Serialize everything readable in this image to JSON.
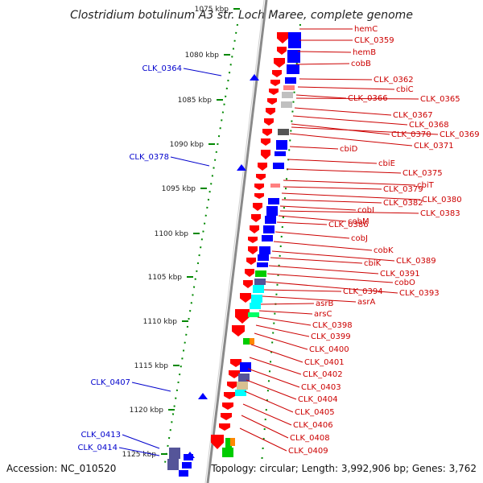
{
  "title": "Clostridium botulinum A3 str. Loch Maree, complete genome",
  "accession_text": "Accession: NC_010520",
  "summary_text": "Topology: circular; Length: 3,992,906 bp; Genes: 3,762",
  "colors": {
    "backbone": "#8a8a8a",
    "forward_genes": "#ff0000",
    "reverse_genes": "#0000ff",
    "tick_marks": "#008800",
    "label_red": "#cc0000",
    "label_blue": "#0000cc"
  },
  "ruler": {
    "unit": "kbp",
    "ticks": [
      "1075 kbp",
      "1080 kbp",
      "1085 kbp",
      "1090 kbp",
      "1095 kbp",
      "1100 kbp",
      "1105 kbp",
      "1110 kbp",
      "1115 kbp",
      "1120 kbp",
      "1125 kbp"
    ]
  },
  "right_labels": [
    "hemC",
    "CLK_0359",
    "hemB",
    "cobB",
    "CLK_0362",
    "cbiC",
    "CLK_0366",
    "CLK_0365",
    "CLK_0367",
    "CLK_0368",
    "CLK_0370",
    "CLK_0369",
    "CLK_0371",
    "cbiD",
    "cbiE",
    "CLK_0375",
    "cbiT",
    "CLK_0379",
    "CLK_0380",
    "CLK_0382",
    "cobI",
    "CLK_0383",
    "cobM",
    "CLK_0386",
    "cobJ",
    "cobK",
    "CLK_0389",
    "cbiK",
    "CLK_0391",
    "cobO",
    "CLK_0393",
    "CLK_0394",
    "asrA",
    "asrB",
    "arsC",
    "CLK_0398",
    "CLK_0399",
    "CLK_0400",
    "CLK_0401",
    "CLK_0402",
    "CLK_0403",
    "CLK_0404",
    "CLK_0405",
    "CLK_0406",
    "CLK_0408",
    "CLK_0409"
  ],
  "left_labels": [
    "CLK_0364",
    "CLK_0378",
    "CLK_0407",
    "CLK_0413",
    "CLK_0414"
  ]
}
